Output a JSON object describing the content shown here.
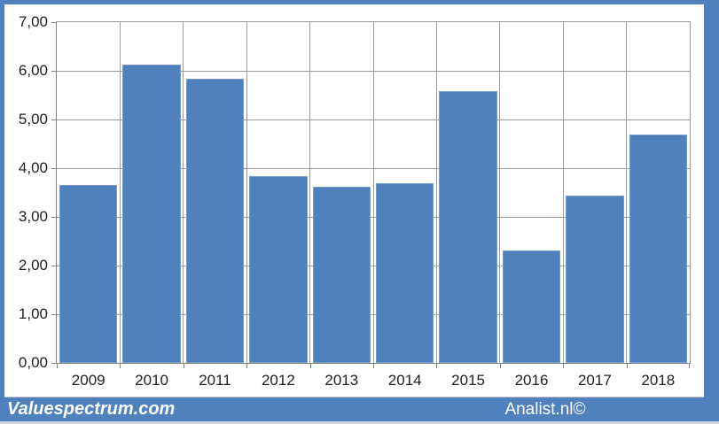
{
  "chart_data": {
    "type": "bar",
    "title": "",
    "xlabel": "",
    "ylabel": "",
    "categories": [
      "2009",
      "2010",
      "2011",
      "2012",
      "2013",
      "2014",
      "2015",
      "2016",
      "2017",
      "2018"
    ],
    "values": [
      3.65,
      6.12,
      5.84,
      3.83,
      3.62,
      3.7,
      5.59,
      2.31,
      3.43,
      4.7
    ],
    "ylim": [
      0,
      7
    ],
    "ytick_step": 1,
    "ytick_labels": [
      "0,00",
      "1,00",
      "2,00",
      "3,00",
      "4,00",
      "5,00",
      "6,00",
      "7,00"
    ],
    "grid": true,
    "legend": false,
    "legend_position": "none",
    "bar_color": "#4f81bd",
    "number_format": "comma-decimal"
  },
  "footer": {
    "left_text": "Valuespectrum.com",
    "right_text": "Analist.nl©"
  },
  "colors": {
    "bar_fill": "#4f81bd",
    "frame_border": "#4f81bd",
    "footer_background": "#4f81bd",
    "plot_background": "#ffffff",
    "gridline": "#9c9c9c",
    "axis_line": "#808080",
    "tick_label_text": "#1f1f1f",
    "footer_text": "#ffffff",
    "bottom_strip": "#c9d4e4"
  }
}
